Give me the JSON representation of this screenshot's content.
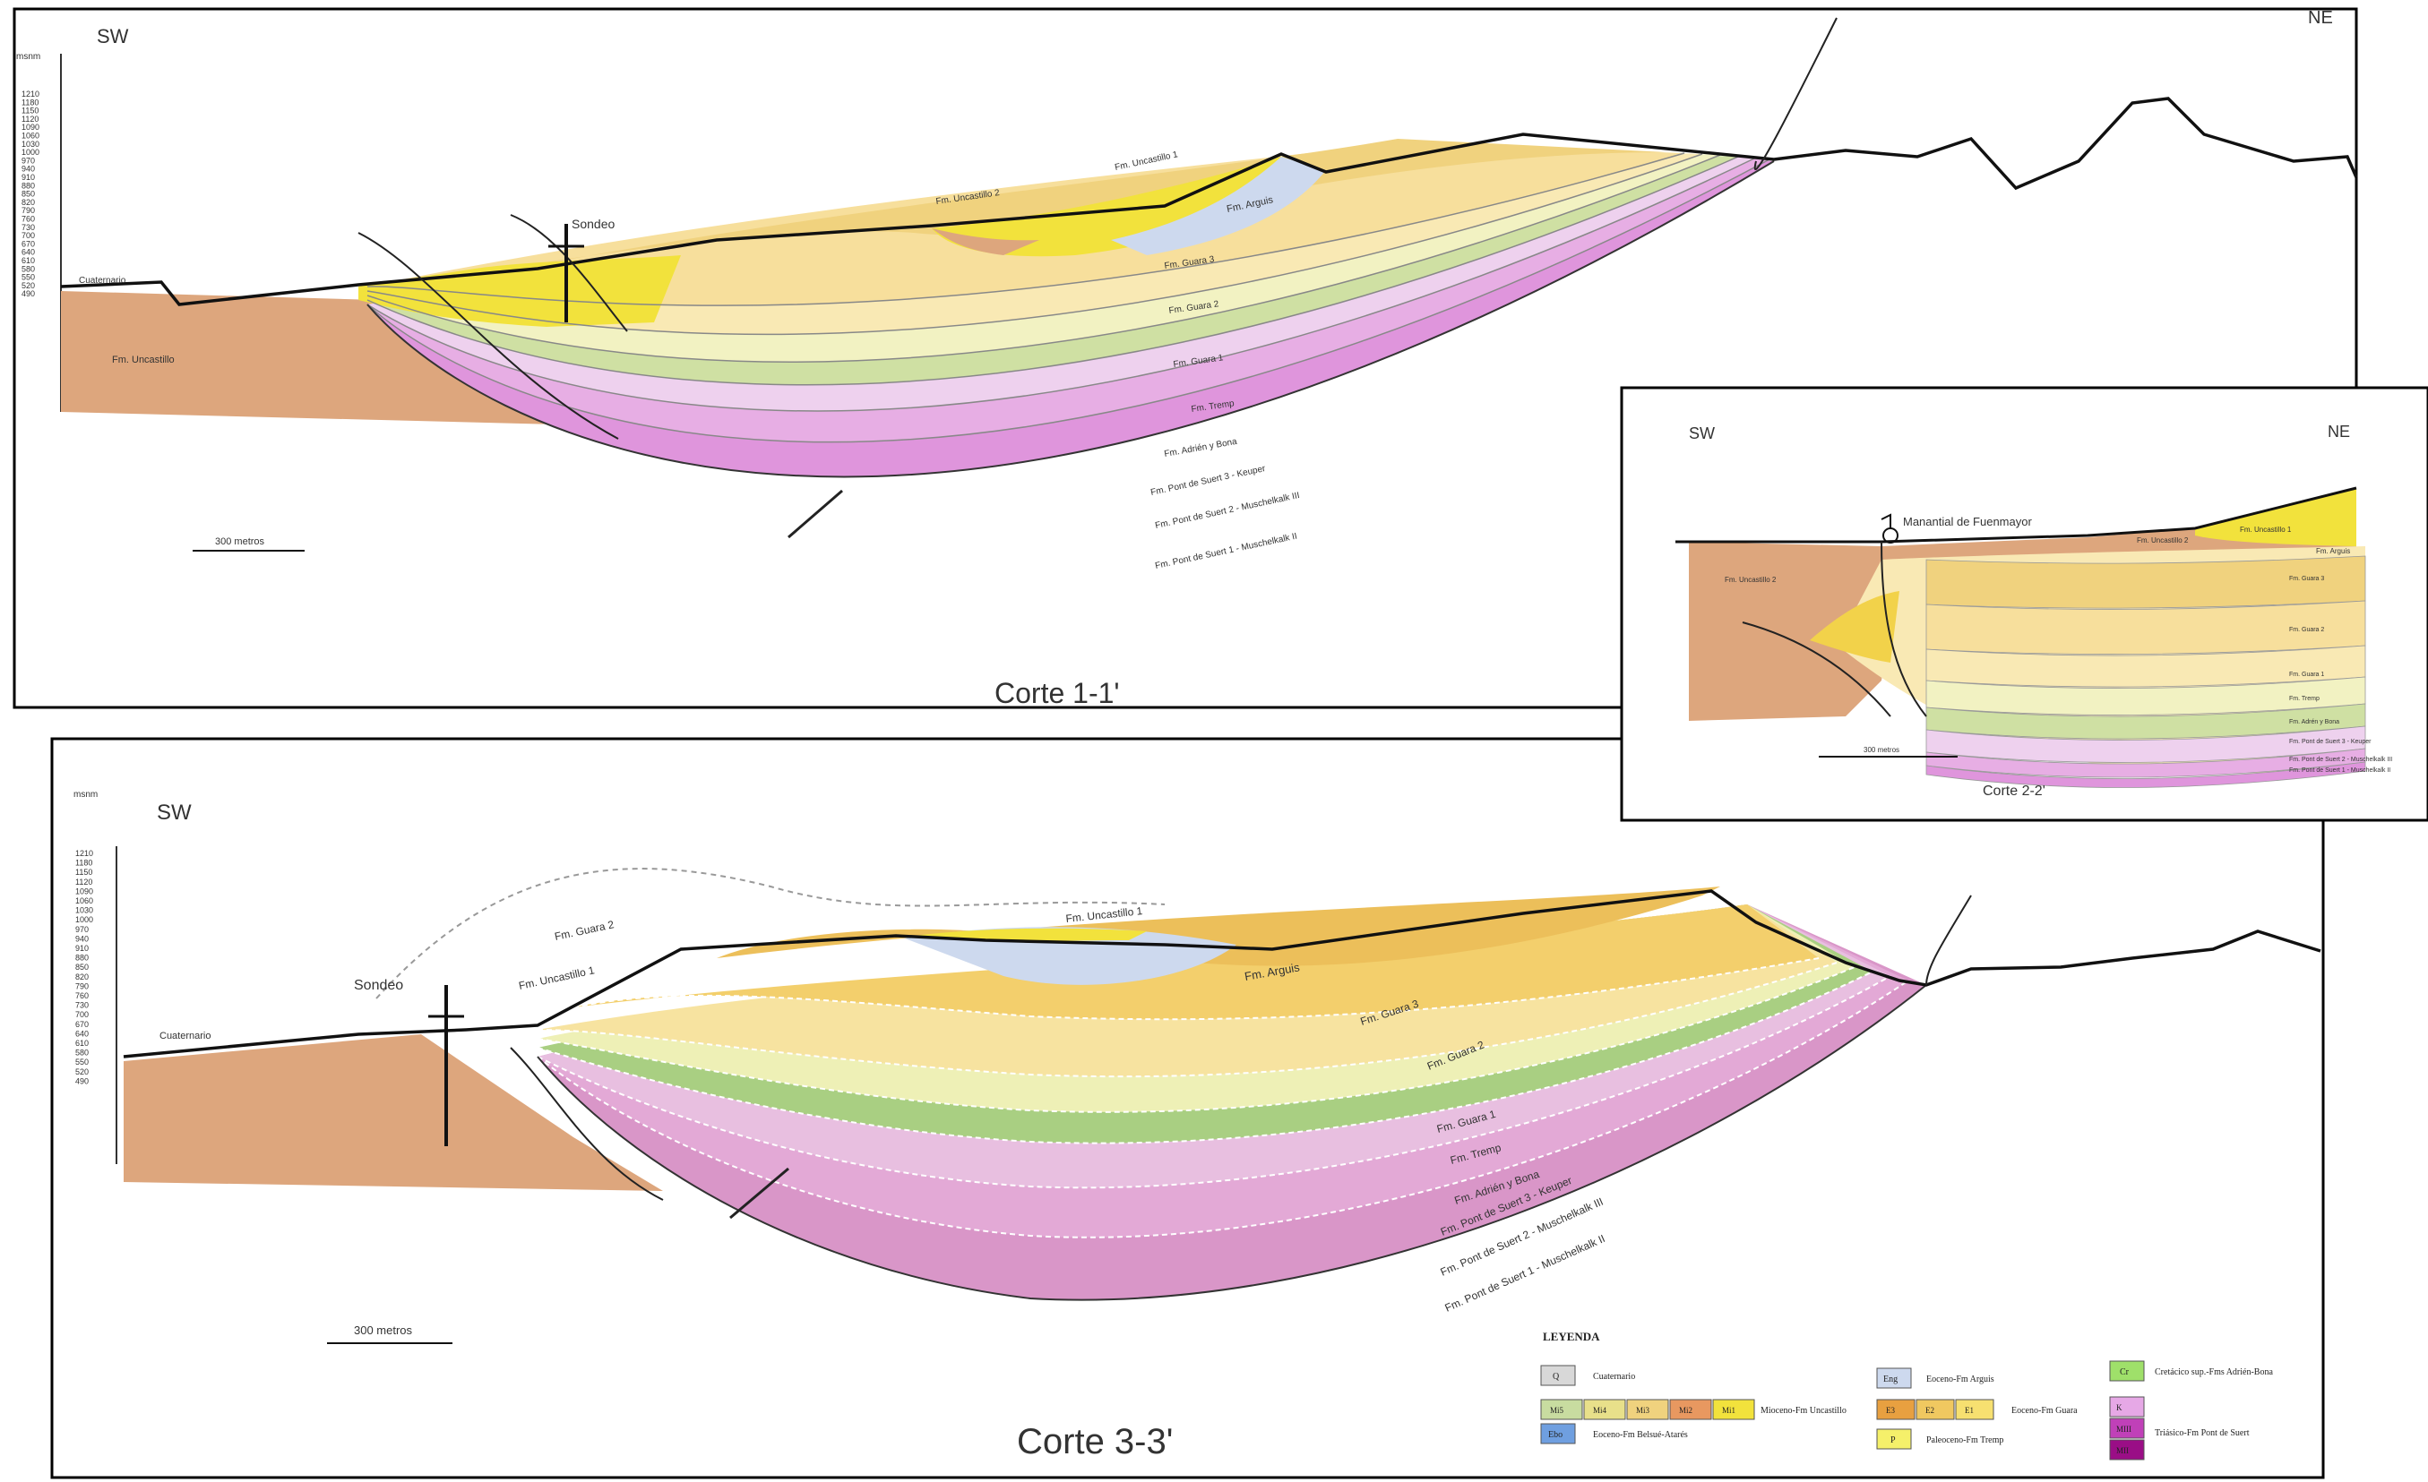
{
  "sections": {
    "s1": {
      "title": "Corte 1-1'",
      "sw": "SW",
      "ne": "NE",
      "axis_unit": "msnm",
      "axis_ticks": [
        "1210",
        "1180",
        "1150",
        "1120",
        "1090",
        "1060",
        "1030",
        "1000",
        "970",
        "940",
        "910",
        "880",
        "850",
        "820",
        "790",
        "760",
        "730",
        "700",
        "670",
        "640",
        "610",
        "580",
        "550",
        "520",
        "490"
      ],
      "scale": "300 metros",
      "sondeo": "Sondeo",
      "cuaternario": "Cuaternario",
      "uncastillo": "Fm. Uncastillo",
      "uncastillo1": "Fm. Uncastillo 1",
      "uncastillo2": "Fm. Uncastillo 2",
      "argues": "Fm. Arguis",
      "layers": [
        "Fm. Guara 3",
        "Fm. Guara 2",
        "Fm. Guara 1",
        "Fm. Tremp",
        "Fm. Adrién y Bona",
        "Fm. Pont de Suert 3 - Keuper",
        "Fm. Pont de Suert 2 - Muschelkalk III",
        "Fm. Pont de Suert 1 - Muschelkalk II"
      ]
    },
    "s2": {
      "title": "Corte 2-2'",
      "sw": "SW",
      "ne": "NE",
      "manantial": "Manantial de Fuenmayor",
      "scale": "300 metros",
      "uncastillo2": "Fm. Uncastillo 2",
      "uncastillo2b": "Fm. Uncastillo 2",
      "uncastillo1": "Fm. Uncastillo 1",
      "argues": "Fm. Arguis",
      "layers": [
        "Fm. Guara 3",
        "Fm. Guara 2",
        "Fm. Guara 1",
        "Fm. Tremp",
        "Fm. Adrén y Bona",
        "Fm. Pont de Suert 3 - Keuper",
        "Fm. Pont de Suert 2 - Muschelkalk III",
        "Fm. Pont de Suert 1 - Muschelkalk II"
      ]
    },
    "s3": {
      "title": "Corte 3-3'",
      "sw": "SW",
      "axis_unit": "msnm",
      "axis_ticks": [
        "1210",
        "1180",
        "1150",
        "1120",
        "1090",
        "1060",
        "1030",
        "1000",
        "970",
        "940",
        "910",
        "880",
        "850",
        "820",
        "790",
        "760",
        "730",
        "700",
        "670",
        "640",
        "610",
        "580",
        "550",
        "520",
        "490"
      ],
      "scale": "300 metros",
      "sondeo": "Sondeo",
      "cuaternario": "Cuaternario",
      "guara2_ghost": "Fm. Guara 2",
      "uncastillo1_ghost": "Fm. Uncastillo 1",
      "uncastillo1": "Fm. Uncastillo 1",
      "argues": "Fm. Arguis",
      "layers": [
        "Fm. Guara 3",
        "Fm. Guara 2",
        "Fm. Guara 1",
        "Fm. Tremp",
        "Fm. Adrién y Bona",
        "Fm. Pont de Suert 3 - Keuper",
        "Fm. Pont de Suert 2 - Muschelkalk III",
        "Fm. Pont de Suert 1 - Muschelkalk II"
      ]
    }
  },
  "legend": {
    "title": "LEYENDA",
    "q": {
      "code": "Q",
      "text": "Cuaternario"
    },
    "miocene": {
      "codes": [
        "Mi5",
        "Mi4",
        "Mi3",
        "Mi2",
        "Mi1"
      ],
      "text": "Mioceno-Fm Uncastillo"
    },
    "ebo": {
      "code": "Ebo",
      "text": "Eoceno-Fm Belsué-Atarés"
    },
    "eng": {
      "code": "Eng",
      "text": "Eoceno-Fm Arguis"
    },
    "eocene": {
      "codes": [
        "E3",
        "E2",
        "E1"
      ],
      "text": "Eoceno-Fm Guara"
    },
    "p": {
      "code": "P",
      "text": "Paleoceno-Fm Tremp"
    },
    "cr": {
      "code": "Cr",
      "text": "Cretácico sup.-Fms Adrién-Bona"
    },
    "trias": {
      "codes": [
        "K",
        "MIII",
        "MII"
      ],
      "text": "Triásico-Fm Pont de Suert"
    }
  },
  "colors": {
    "quaternary": "#d8d8d8",
    "uncastillo_brown": "#dda67d",
    "uncastillo_yellow": "#f2e23c",
    "arguis": "#cdd9ee",
    "guara3": "#f0d27e",
    "guara2": "#f7df9c",
    "guara1": "#f9e9b4",
    "tremp": "#f2f2c2",
    "adrien": "#cfe0a3",
    "keuper": "#eed1ee",
    "musch3": "#e7aee4",
    "musch2": "#df95dc"
  }
}
